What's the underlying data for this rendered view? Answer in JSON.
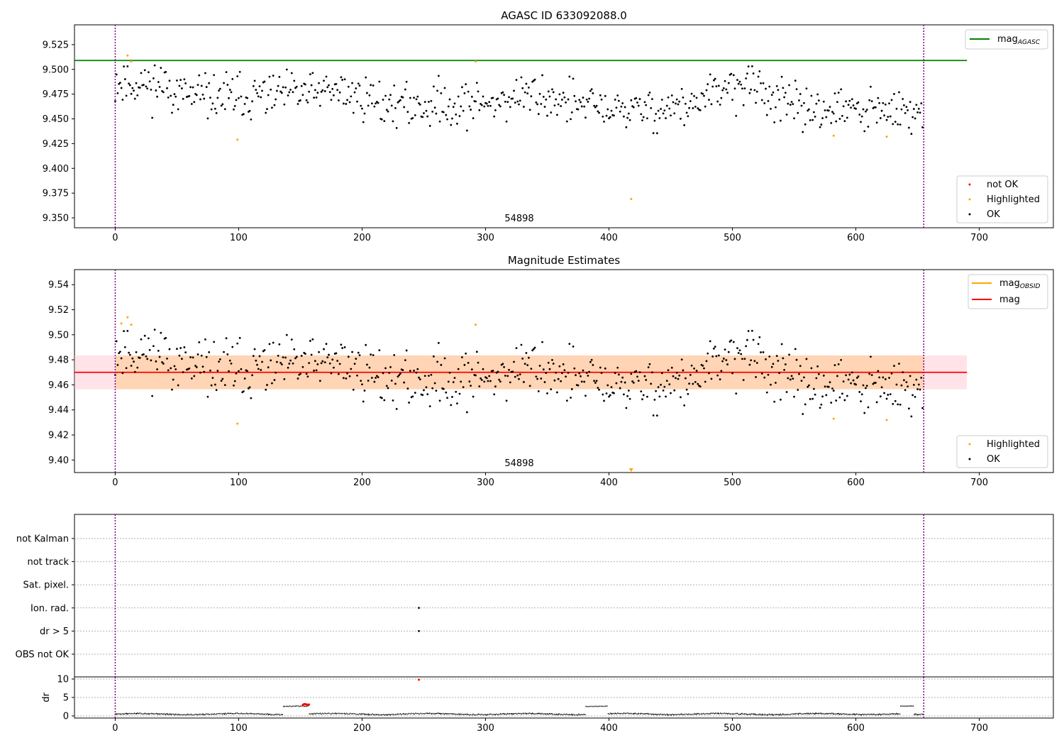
{
  "chart_data": [
    {
      "type": "scatter",
      "title": "AGASC ID 633092088.0",
      "xlim": [
        -33,
        760
      ],
      "ylim": [
        9.34,
        9.545
      ],
      "xticks": [
        0,
        100,
        200,
        300,
        400,
        500,
        600,
        700
      ],
      "yticks": [
        9.35,
        9.375,
        9.4,
        9.425,
        9.45,
        9.475,
        9.5,
        9.525
      ],
      "ytick_format": 3,
      "annotation": {
        "text": "54898",
        "x": 327,
        "y": 9.3445
      },
      "vlines": [
        0,
        655
      ],
      "hlines": [
        {
          "name": "mag_AGASC",
          "y": 9.509,
          "x": [
            -33,
            690
          ],
          "color": "#008000"
        }
      ],
      "ok_series": {
        "name": "OK",
        "color": "#000000",
        "seed": 11,
        "n": 655,
        "base": 9.468,
        "noise": 0.011,
        "trend": [
          [
            0,
            9.488
          ],
          [
            40,
            9.484
          ],
          [
            60,
            9.472
          ],
          [
            100,
            9.472
          ],
          [
            150,
            9.475
          ],
          [
            180,
            9.478
          ],
          [
            230,
            9.463
          ],
          [
            300,
            9.466
          ],
          [
            340,
            9.475
          ],
          [
            380,
            9.463
          ],
          [
            420,
            9.458
          ],
          [
            470,
            9.464
          ],
          [
            500,
            9.484
          ],
          [
            520,
            9.482
          ],
          [
            545,
            9.462
          ],
          [
            600,
            9.458
          ],
          [
            655,
            9.455
          ]
        ]
      },
      "highlighted": {
        "name": "Highlighted",
        "color": "#ffa500",
        "points": [
          [
            10,
            9.514
          ],
          [
            13,
            9.508
          ],
          [
            99,
            9.429
          ],
          [
            292,
            9.508
          ],
          [
            418,
            9.369
          ],
          [
            582,
            9.433
          ],
          [
            625,
            9.432
          ]
        ]
      },
      "not_ok": {
        "name": "not OK",
        "color": "#ff0000",
        "points": []
      },
      "legend_lines": [
        {
          "label": "mag",
          "sub": "AGASC",
          "color": "#008000"
        }
      ],
      "legend_points": [
        {
          "label": "not OK",
          "color": "#ff0000"
        },
        {
          "label": "Highlighted",
          "color": "#ffa500"
        },
        {
          "label": "OK",
          "color": "#000000"
        }
      ]
    },
    {
      "type": "scatter",
      "title": "Magnitude Estimates",
      "xlim": [
        -33,
        760
      ],
      "ylim": [
        9.39,
        9.552
      ],
      "xticks": [
        0,
        100,
        200,
        300,
        400,
        500,
        600,
        700
      ],
      "yticks": [
        9.4,
        9.42,
        9.44,
        9.46,
        9.48,
        9.5,
        9.52,
        9.54
      ],
      "ytick_format": 2,
      "annotation": {
        "text": "54898",
        "x": 327,
        "y": 9.3965
      },
      "vlines": [
        0,
        655
      ],
      "hlines": [
        {
          "name": "mag",
          "y": 9.47,
          "x": [
            -33,
            690
          ],
          "color": "#ff0000"
        }
      ],
      "bands": [
        {
          "y": [
            9.4565,
            9.4835
          ],
          "x": [
            -33,
            690
          ],
          "color": "#ffc0cb",
          "opacity": 0.45
        },
        {
          "y": [
            9.4565,
            9.4835
          ],
          "x": [
            0,
            655
          ],
          "color": "#ffa500",
          "opacity": 0.22
        }
      ],
      "ok_series": {
        "name": "OK",
        "color": "#000000",
        "seed": 11,
        "n": 655,
        "base": 9.468,
        "noise": 0.011,
        "trend": [
          [
            0,
            9.488
          ],
          [
            40,
            9.484
          ],
          [
            60,
            9.472
          ],
          [
            100,
            9.472
          ],
          [
            150,
            9.475
          ],
          [
            180,
            9.478
          ],
          [
            230,
            9.463
          ],
          [
            300,
            9.466
          ],
          [
            340,
            9.475
          ],
          [
            380,
            9.463
          ],
          [
            420,
            9.458
          ],
          [
            470,
            9.464
          ],
          [
            500,
            9.484
          ],
          [
            520,
            9.482
          ],
          [
            545,
            9.462
          ],
          [
            600,
            9.458
          ],
          [
            655,
            9.455
          ]
        ]
      },
      "highlighted": {
        "name": "Highlighted",
        "color": "#ffa500",
        "points": [
          [
            5,
            9.509
          ],
          [
            10,
            9.514
          ],
          [
            13,
            9.508
          ],
          [
            99,
            9.429
          ],
          [
            292,
            9.508
          ],
          [
            582,
            9.433
          ],
          [
            625,
            9.432
          ]
        ]
      },
      "offscale_marker": {
        "x": 418,
        "color": "#ffa500"
      },
      "legend_lines": [
        {
          "label": "mag",
          "sub": "OBSID",
          "color": "#ffa500"
        },
        {
          "label": "mag",
          "sub": "",
          "color": "#ff0000"
        }
      ],
      "legend_points": [
        {
          "label": "Highlighted",
          "color": "#ffa500"
        },
        {
          "label": "OK",
          "color": "#000000"
        }
      ]
    },
    {
      "type": "scatter",
      "title": "",
      "xlim": [
        -33,
        760
      ],
      "categories": [
        "not Kalman",
        "not track",
        "Sat. pixel.",
        "Ion. rad.",
        "dr > 5",
        "OBS not OK"
      ],
      "flag_points": [
        {
          "category": "Ion. rad.",
          "x": 246
        },
        {
          "category": "dr > 5",
          "x": 246
        }
      ],
      "vlines": [
        0,
        655
      ]
    },
    {
      "type": "line",
      "ylabel": "dr",
      "xlim": [
        -33,
        760
      ],
      "ylim": [
        -0.5,
        10.5
      ],
      "xticks": [
        0,
        100,
        200,
        300,
        400,
        500,
        600,
        700
      ],
      "yticks": [
        0,
        5,
        10
      ],
      "vlines": [
        0,
        655
      ],
      "segments": [
        {
          "x": [
            0,
            136
          ],
          "y": 0.5,
          "amp": 0.25
        },
        {
          "x": [
            136,
            157
          ],
          "y": 2.7,
          "amp": 0.15
        },
        {
          "x": [
            157,
            381
          ],
          "y": 0.5,
          "amp": 0.25
        },
        {
          "x": [
            381,
            399
          ],
          "y": 2.6,
          "amp": 0.1
        },
        {
          "x": [
            399,
            636
          ],
          "y": 0.5,
          "amp": 0.25
        },
        {
          "x": [
            636,
            647
          ],
          "y": 2.6,
          "amp": 0.1
        },
        {
          "x": [
            647,
            655
          ],
          "y": 0.3,
          "amp": 0.2
        }
      ],
      "red_points": [
        [
          152,
          3.0
        ],
        [
          153,
          3.2
        ],
        [
          154,
          3.2
        ],
        [
          155,
          3.1
        ],
        [
          156,
          3.0
        ],
        [
          157,
          3.1
        ],
        [
          246,
          9.8
        ]
      ]
    }
  ]
}
